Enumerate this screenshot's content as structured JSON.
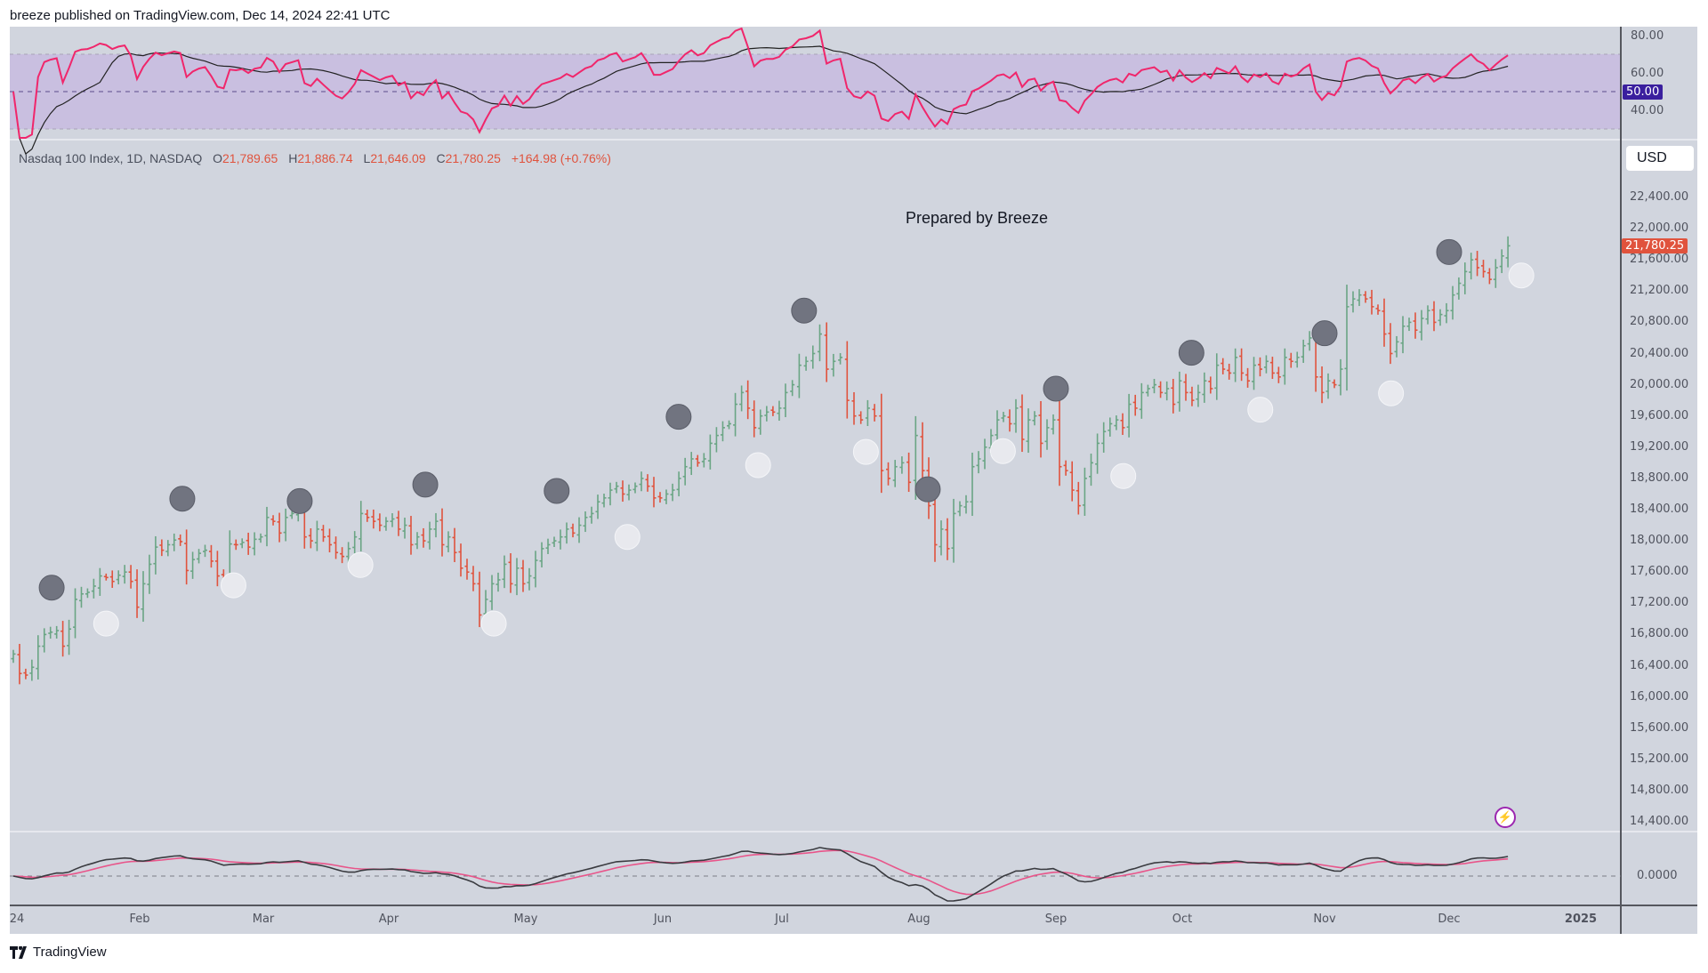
{
  "header": {
    "published": "breeze published on TradingView.com, Dec 14, 2024 22:41 UTC"
  },
  "legend": {
    "symbol": "Nasdaq 100 Index, 1D, NASDAQ",
    "open_label": "O",
    "open": "21,789.65",
    "high_label": "H",
    "high": "21,886.74",
    "low_label": "L",
    "low": "21,646.09",
    "close_label": "C",
    "close": "21,780.25",
    "change": "+164.98 (+0.76%)"
  },
  "annotation": "Prepared by Breeze",
  "currency": "USD",
  "last_price_tag": "21,780.25",
  "rsi_axis": {
    "ticks": [
      "80.00",
      "60.00",
      "40.00"
    ],
    "midline_tag": "50.00"
  },
  "macd_axis": {
    "ticks": [
      "0.0000"
    ]
  },
  "footer": {
    "logo_text": "TradingView"
  },
  "colors": {
    "up": "#6aa584",
    "down": "#e0533d",
    "rsi": "#f0266b",
    "rsi_band": "#c9bfe0",
    "background": "#d1d5de",
    "macd": "#3a3b40",
    "signal": "#e8558a",
    "high_marker": "#717480",
    "low_marker": "#e8e9ee",
    "midline_tag": "#3a1f9e"
  },
  "icons": {
    "alert": "lightning-icon",
    "logo": "tradingview-logo-icon"
  },
  "chart_data": {
    "type": "ohlc",
    "title": "Nasdaq 100 Index, 1D, NASDAQ",
    "y_ticks": [
      "22,400.00",
      "22,000.00",
      "21,600.00",
      "21,200.00",
      "20,800.00",
      "20,400.00",
      "20,000.00",
      "19,600.00",
      "19,200.00",
      "18,800.00",
      "18,400.00",
      "18,000.00",
      "17,600.00",
      "17,200.00",
      "16,800.00",
      "16,400.00",
      "16,000.00",
      "15,600.00",
      "15,200.00",
      "14,800.00",
      "14,400.00"
    ],
    "x_ticks": [
      "24",
      "Feb",
      "Mar",
      "Apr",
      "May",
      "Jun",
      "Jul",
      "Aug",
      "Sep",
      "Oct",
      "Nov",
      "Dec",
      "2025"
    ],
    "ylim": [
      14200,
      22700
    ],
    "daily_closes_by_month": {
      "Jan": [
        16550,
        16300,
        16280,
        16380,
        16650,
        16800,
        16830,
        16850,
        16650,
        16870,
        17250,
        17320,
        17340,
        17420,
        17550,
        17530,
        17480,
        17560,
        17600,
        17480,
        17150
      ],
      "Feb": [
        17450,
        17700,
        17920,
        17880,
        17950,
        18010,
        17990,
        17620,
        17760,
        17840,
        17880,
        17740,
        17550,
        17520,
        17960,
        17950,
        17980,
        17920,
        18020,
        18050
      ],
      "Mar": [
        18300,
        18250,
        18100,
        18300,
        18350,
        18400,
        18050,
        18000,
        18150,
        18050,
        17950,
        17850,
        17800,
        17900,
        18050,
        18350,
        18300,
        18250,
        18200,
        18250
      ],
      "Apr": [
        18280,
        18150,
        18200,
        17950,
        18050,
        18000,
        18150,
        18250,
        17950,
        18050,
        17850,
        17650,
        17600,
        17450,
        17050,
        17250,
        17450,
        17500,
        17700,
        17450,
        17650,
        17450
      ],
      "May": [
        17550,
        17750,
        17900,
        17950,
        18000,
        18050,
        18150,
        18100,
        18200,
        18300,
        18350,
        18500,
        18550,
        18650,
        18700,
        18600,
        18650,
        18700,
        18800,
        18700,
        18550,
        18550
      ],
      "Jun": [
        18600,
        18650,
        18800,
        18950,
        19050,
        19000,
        19050,
        19250,
        19350,
        19450,
        19500,
        19750,
        19900,
        19700,
        19450,
        19600,
        19650,
        19650,
        19700
      ],
      "Jul": [
        19900,
        20000,
        20250,
        20300,
        20400,
        20650,
        20200,
        20300,
        20350,
        19800,
        19600,
        19550,
        19700,
        19600,
        18900,
        18800,
        18950,
        19000,
        18750,
        19350
      ],
      "Aug": [
        18900,
        18450,
        17950,
        18150,
        17900,
        18350,
        18450,
        18500,
        18950,
        19050,
        19200,
        19350,
        19550,
        19600,
        19500,
        19700,
        19300,
        19550,
        19600,
        19250,
        19450,
        19550
      ],
      "Sep": [
        18950,
        18900,
        18650,
        18450,
        18800,
        19000,
        19250,
        19400,
        19500,
        19550,
        19450,
        19750,
        19700,
        19900,
        19950,
        20000,
        19900,
        19950,
        19750,
        20050
      ],
      "Oct": [
        19900,
        19800,
        19900,
        20050,
        19950,
        20250,
        20200,
        20150,
        20350,
        20150,
        20050,
        20250,
        20200,
        20300,
        20150,
        20100,
        20350,
        20300,
        20350,
        20500,
        20600,
        20100,
        19900
      ],
      "Nov": [
        20050,
        20000,
        20200,
        21000,
        21100,
        21150,
        21100,
        21000,
        20950,
        20650,
        20400,
        20550,
        20750,
        20800,
        20700,
        20850,
        20950,
        20800,
        20900,
        20950
      ],
      "Dec": [
        21150,
        21300,
        21450,
        21600,
        21500,
        21450,
        21350,
        21500,
        21650,
        21780
      ]
    },
    "swing_high_markers": [
      {
        "date": "2024-01-11",
        "price": 17400
      },
      {
        "date": "2024-02-11",
        "price": 18540
      },
      {
        "date": "2024-03-10",
        "price": 18510
      },
      {
        "date": "2024-04-09",
        "price": 18720
      },
      {
        "date": "2024-05-08",
        "price": 18640
      },
      {
        "date": "2024-06-05",
        "price": 19590
      },
      {
        "date": "2024-07-06",
        "price": 20950
      },
      {
        "date": "2024-08-03",
        "price": 18660
      },
      {
        "date": "2024-09-01",
        "price": 19950
      },
      {
        "date": "2024-10-03",
        "price": 20410
      },
      {
        "date": "2024-11-01",
        "price": 20660
      },
      {
        "date": "2024-12-01",
        "price": 21700
      }
    ],
    "swing_low_markers": [
      {
        "date": "2024-01-24",
        "price": 16940
      },
      {
        "date": "2024-02-23",
        "price": 17430
      },
      {
        "date": "2024-03-25",
        "price": 17690
      },
      {
        "date": "2024-04-24",
        "price": 16940
      },
      {
        "date": "2024-05-24",
        "price": 18050
      },
      {
        "date": "2024-06-25",
        "price": 18970
      },
      {
        "date": "2024-07-20",
        "price": 19140
      },
      {
        "date": "2024-08-20",
        "price": 19150
      },
      {
        "date": "2024-09-17",
        "price": 18830
      },
      {
        "date": "2024-10-18",
        "price": 19680
      },
      {
        "date": "2024-11-17",
        "price": 19890
      },
      {
        "date": "2024-12-18",
        "price": 21400
      }
    ]
  }
}
